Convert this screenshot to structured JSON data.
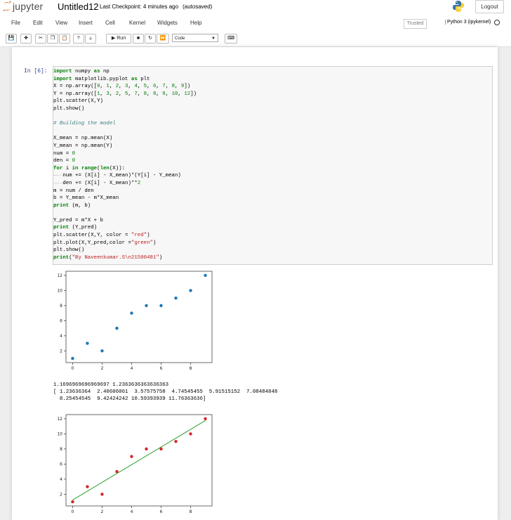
{
  "header": {
    "logo_text": "jupyter",
    "notebook_title": "Untitled12",
    "checkpoint": "Last Checkpoint: 4 minutes ago",
    "autosave": "(autosaved)",
    "logout_label": "Logout"
  },
  "menu": [
    "File",
    "Edit",
    "View",
    "Insert",
    "Cell",
    "Kernel",
    "Widgets",
    "Help"
  ],
  "status": {
    "trusted": "Trusted",
    "kernel": "Python 3 (ipykernel)"
  },
  "toolbar": {
    "run_label": "Run",
    "cell_type": "Code"
  },
  "icons": [
    "save-icon",
    "plus-icon",
    "scissors-icon",
    "copy-icon",
    "paste-icon",
    "arrow-up-icon",
    "arrow-down-icon",
    "run-icon",
    "stop-icon",
    "restart-icon",
    "fast-forward-icon",
    "keyboard-icon",
    "python-logo-icon"
  ],
  "cell": {
    "prompt": "In [6]:",
    "code_lines": [
      "import numpy as np",
      "import matplotlib.pyplot as plt",
      "X = np.array([0, 1, 2, 3, 4, 5, 6, 7, 8, 9])",
      "Y = np.array([1, 3, 2, 5, 7, 8, 8, 9, 10, 12])",
      "plt.scatter(X,Y)",
      "plt.show()",
      "",
      "# Building the model",
      "",
      "X_mean = np.mean(X)",
      "Y_mean = np.mean(Y)",
      "num = 0",
      "den = 0",
      "for i in range(len(X)):",
      "    num += (X[i] - X_mean)*(Y[i] - Y_mean)",
      "    den += (X[i] - X_mean)**2",
      "m = num / den",
      "b = Y_mean - m*X_mean",
      "print (m, b)",
      "",
      "Y_pred = m*X + b",
      "print (Y_pred)",
      "plt.scatter(X,Y, color = \"red\")",
      "plt.plot(X,Y_pred,color =\"green\")",
      "plt.show()",
      "print(\"By Naveenkumar.S\\n21500481\")"
    ],
    "output_lines": [
      "1.1696969696969697 1.2363636363636363",
      "[ 1.23636364  2.40606061  3.57575758  4.74545455  5.91515152  7.08484848",
      "  8.25454545  9.42424242 10.59393939 11.76363636]"
    ]
  },
  "chart_data": [
    {
      "type": "scatter",
      "x": [
        0,
        1,
        2,
        3,
        4,
        5,
        6,
        7,
        8,
        9
      ],
      "y": [
        1,
        3,
        2,
        5,
        7,
        8,
        8,
        9,
        10,
        12
      ],
      "xticks": [
        "0",
        "2",
        "4",
        "6",
        "8"
      ],
      "yticks": [
        "2",
        "4",
        "6",
        "8",
        "10",
        "12"
      ],
      "xlim": [
        -0.45,
        9.45
      ],
      "ylim": [
        0.45,
        12.55
      ],
      "point_color": "#1f77b4"
    },
    {
      "type": "scatter",
      "x": [
        0,
        1,
        2,
        3,
        4,
        5,
        6,
        7,
        8,
        9
      ],
      "y": [
        1,
        3,
        2,
        5,
        7,
        8,
        8,
        9,
        10,
        12
      ],
      "line_y": [
        1.23636364,
        2.40606061,
        3.57575758,
        4.74545455,
        5.91515152,
        7.08484848,
        8.25454545,
        9.42424242,
        10.59393939,
        11.76363636
      ],
      "xticks": [
        "0",
        "2",
        "4",
        "6",
        "8"
      ],
      "yticks": [
        "2",
        "4",
        "6",
        "8",
        "10",
        "12"
      ],
      "xlim": [
        -0.45,
        9.45
      ],
      "ylim": [
        0.45,
        12.55
      ],
      "point_color": "#d62728",
      "line_color": "#2ca02c"
    }
  ]
}
